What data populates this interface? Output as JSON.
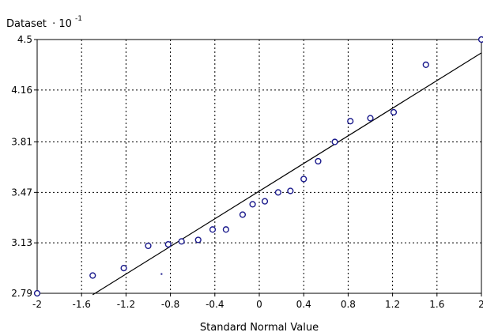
{
  "chart_data": {
    "type": "scatter",
    "ylabel": "Dataset",
    "ylabel_suffix": "· 10",
    "ylabel_exponent": "-1",
    "xlabel": "Standard Normal Value",
    "xlim": [
      -2,
      2
    ],
    "ylim": [
      2.79,
      4.5
    ],
    "x_ticks": [
      "-2",
      "-1.6",
      "-1.2",
      "-0.8",
      "-0.4",
      "0",
      "0.4",
      "0.8",
      "1.2",
      "1.6",
      "2"
    ],
    "x_tick_values": [
      -2,
      -1.6,
      -1.2,
      -0.8,
      -0.4,
      0,
      0.4,
      0.8,
      1.2,
      1.6,
      2
    ],
    "y_ticks": [
      "2.79",
      "3.13",
      "3.47",
      "3.81",
      "4.16",
      "4.5"
    ],
    "y_tick_values": [
      2.79,
      3.13,
      3.47,
      3.81,
      4.16,
      4.5
    ],
    "grid": true,
    "point_color": "#1a1a8c",
    "line_color": "#000000",
    "points": [
      {
        "x": -2.0,
        "y": 2.79
      },
      {
        "x": -1.5,
        "y": 2.91
      },
      {
        "x": -1.22,
        "y": 2.96
      },
      {
        "x": -1.0,
        "y": 3.11
      },
      {
        "x": -0.82,
        "y": 3.12
      },
      {
        "x": -0.7,
        "y": 3.14
      },
      {
        "x": -0.55,
        "y": 3.15
      },
      {
        "x": -0.42,
        "y": 3.22
      },
      {
        "x": -0.3,
        "y": 3.22
      },
      {
        "x": -0.15,
        "y": 3.32
      },
      {
        "x": -0.06,
        "y": 3.39
      },
      {
        "x": 0.05,
        "y": 3.41
      },
      {
        "x": 0.17,
        "y": 3.47
      },
      {
        "x": 0.28,
        "y": 3.48
      },
      {
        "x": 0.4,
        "y": 3.56
      },
      {
        "x": 0.53,
        "y": 3.68
      },
      {
        "x": 0.68,
        "y": 3.81
      },
      {
        "x": 0.82,
        "y": 3.95
      },
      {
        "x": 1.0,
        "y": 3.97
      },
      {
        "x": 1.21,
        "y": 4.01
      },
      {
        "x": 1.5,
        "y": 4.33
      },
      {
        "x": 2.0,
        "y": 4.5
      }
    ],
    "stray_point": {
      "x": -0.88,
      "y": 2.92
    },
    "fit_line": {
      "x": [
        -1.5,
        2.0
      ],
      "y": [
        2.78,
        4.41
      ]
    }
  }
}
